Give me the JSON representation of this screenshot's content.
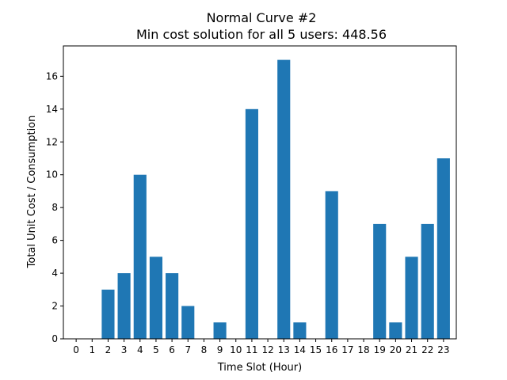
{
  "chart_data": {
    "type": "bar",
    "title": "Normal Curve #2",
    "subtitle": "Min cost solution for all 5 users: 448.56",
    "xlabel": "Time Slot (Hour)",
    "ylabel": "Total Unit Cost / Consumption",
    "categories": [
      "0",
      "1",
      "2",
      "3",
      "4",
      "5",
      "6",
      "7",
      "8",
      "9",
      "10",
      "11",
      "12",
      "13",
      "14",
      "15",
      "16",
      "17",
      "18",
      "19",
      "20",
      "21",
      "22",
      "23"
    ],
    "values": [
      0,
      0,
      3,
      4,
      10,
      5,
      4,
      2,
      0,
      1,
      0,
      14,
      0,
      17,
      1,
      0,
      9,
      0,
      0,
      7,
      1,
      5,
      7,
      11
    ],
    "ylim": [
      0,
      17.85
    ],
    "yticks": [
      0,
      2,
      4,
      6,
      8,
      10,
      12,
      14,
      16
    ],
    "bar_color": "#1f77b4",
    "grid": false,
    "legend": "none"
  }
}
